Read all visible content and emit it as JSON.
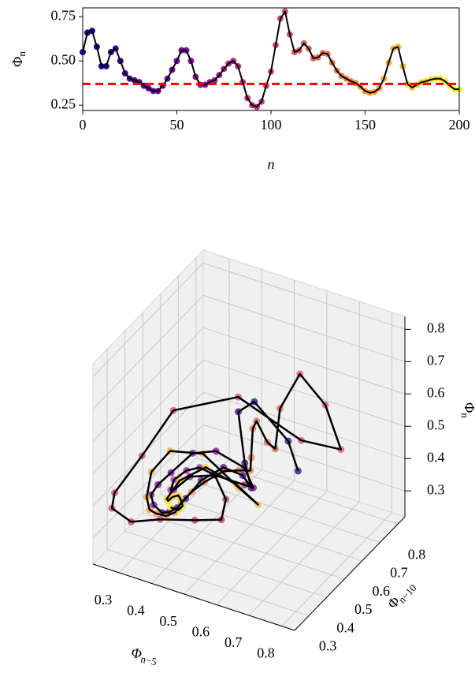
{
  "chart_data": [
    {
      "type": "line",
      "ylabel": "Φ",
      "ylabel_sub": "n",
      "xlabel": "n",
      "x": [
        0,
        2.5,
        5,
        7.5,
        10,
        12.5,
        15,
        17.5,
        20,
        22.5,
        25,
        27.5,
        30,
        32.5,
        35,
        37.5,
        40,
        42.5,
        45,
        47.5,
        50,
        52.5,
        55,
        57.5,
        60,
        62.5,
        65,
        67.5,
        70,
        72.5,
        75,
        77.5,
        80,
        82.5,
        85,
        87.5,
        90,
        92.5,
        95,
        97.5,
        100,
        102.5,
        105,
        107.5,
        110,
        112.5,
        115,
        117.5,
        120,
        122.5,
        125,
        127.5,
        130,
        132.5,
        135,
        137.5,
        140,
        142.5,
        145,
        147.5,
        150,
        152.5,
        155,
        157.5,
        160,
        162.5,
        165,
        167.5,
        170,
        172.5,
        175,
        177.5,
        180,
        182.5,
        185,
        187.5,
        190,
        192.5,
        195,
        197.5,
        200
      ],
      "values": [
        0.55,
        0.66,
        0.67,
        0.58,
        0.47,
        0.47,
        0.55,
        0.57,
        0.5,
        0.43,
        0.4,
        0.39,
        0.38,
        0.36,
        0.345,
        0.33,
        0.33,
        0.36,
        0.4,
        0.45,
        0.5,
        0.56,
        0.56,
        0.5,
        0.41,
        0.365,
        0.365,
        0.38,
        0.39,
        0.42,
        0.455,
        0.485,
        0.5,
        0.47,
        0.38,
        0.29,
        0.25,
        0.24,
        0.27,
        0.36,
        0.44,
        0.59,
        0.74,
        0.78,
        0.65,
        0.55,
        0.56,
        0.6,
        0.57,
        0.515,
        0.52,
        0.545,
        0.54,
        0.49,
        0.445,
        0.415,
        0.4,
        0.385,
        0.375,
        0.355,
        0.33,
        0.32,
        0.325,
        0.345,
        0.4,
        0.49,
        0.57,
        0.58,
        0.47,
        0.37,
        0.35,
        0.365,
        0.38,
        0.385,
        0.395,
        0.4,
        0.4,
        0.385,
        0.36,
        0.34,
        0.34
      ],
      "xlim": [
        0,
        200
      ],
      "ylim": [
        0.22,
        0.8
      ],
      "xticks": [
        0,
        50,
        100,
        150,
        200
      ],
      "yticks": [
        0.25,
        {
          "value": 0.5,
          "label": "0.50"
        },
        0.75
      ],
      "line_color": "#000000",
      "colors": [
        "#0d0887",
        "#7e03a8",
        "#cc4778",
        "#f89540",
        "#f0f921"
      ],
      "hline": {
        "value": 0.37,
        "color": "#ff0000"
      }
    },
    {
      "type": "scatter3d",
      "xlabel": "Φ",
      "xlabel_sub": "n−5",
      "ylabel": "Φ",
      "ylabel_sub": "n−10",
      "zlabel": "Φ",
      "zlabel_sub": "n",
      "lags": [
        5,
        10
      ],
      "xlim": [
        0.22,
        0.84
      ],
      "ylim": [
        0.22,
        0.84
      ],
      "zlim": [
        0.22,
        0.84
      ],
      "xticks": [
        0.3,
        0.4,
        0.5,
        0.6,
        0.7,
        0.8
      ],
      "yticks": [
        0.3,
        0.4,
        0.5,
        0.6,
        0.7,
        0.8
      ],
      "zticks": [
        0.3,
        0.4,
        0.5,
        0.6,
        0.7,
        0.8
      ],
      "line_color": "#000000",
      "pane_color": "#f0f0f0",
      "grid": true
    }
  ]
}
